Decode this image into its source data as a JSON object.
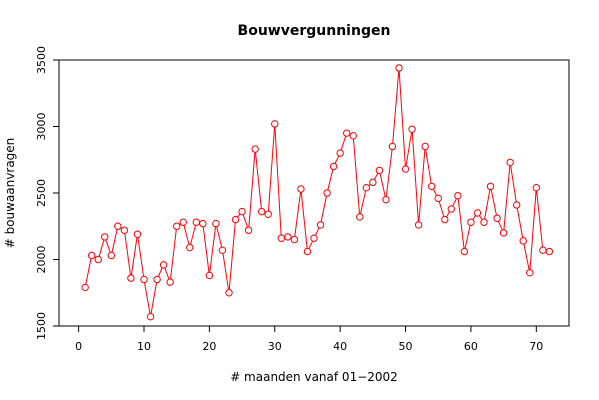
{
  "chart_data": {
    "type": "line",
    "title": "Bouwvergunningen",
    "xlabel": "# maanden vanaf 01−2002",
    "ylabel": "# bouwaanvragen",
    "xlim": [
      -3,
      75
    ],
    "ylim": [
      1500,
      3500
    ],
    "xticks": [
      0,
      10,
      20,
      30,
      40,
      50,
      60,
      70
    ],
    "yticks": [
      1500,
      2000,
      2500,
      3000,
      3500
    ],
    "grid": false,
    "line_color": "#ff0000",
    "marker": "open-circle",
    "series": [
      {
        "x": [
          1,
          2,
          3,
          4,
          5,
          6,
          7,
          8,
          9,
          10,
          11,
          12,
          13,
          14,
          15,
          16,
          17,
          18,
          19,
          20,
          21,
          22,
          23,
          24,
          25,
          26,
          27,
          28,
          29,
          30,
          31,
          32,
          33,
          34,
          35,
          36,
          37,
          38,
          39,
          40,
          41,
          42,
          43,
          44,
          45,
          46,
          47,
          48,
          49,
          50,
          51,
          52,
          53,
          54,
          55,
          56,
          57,
          58,
          59,
          60,
          61,
          62,
          63,
          64,
          65,
          66,
          67,
          68,
          69,
          70,
          71,
          72
        ],
        "values": [
          1790,
          2030,
          2000,
          2170,
          2030,
          2250,
          2220,
          1860,
          2190,
          1850,
          1570,
          1850,
          1960,
          1830,
          2250,
          2280,
          2090,
          2280,
          2270,
          1880,
          2270,
          2070,
          1750,
          2300,
          2360,
          2220,
          2830,
          2360,
          2340,
          3020,
          2160,
          2170,
          2150,
          2530,
          2060,
          2160,
          2260,
          2500,
          2700,
          2800,
          2950,
          2930,
          2320,
          2540,
          2580,
          2670,
          2450,
          2850,
          3440,
          2680,
          2980,
          2260,
          2850,
          2550,
          2460,
          2300,
          2380,
          2480,
          2060,
          2280,
          2350,
          2280,
          2550,
          2310,
          2200,
          2730,
          2410,
          2140,
          1900,
          2540,
          2070,
          2060
        ]
      }
    ]
  }
}
